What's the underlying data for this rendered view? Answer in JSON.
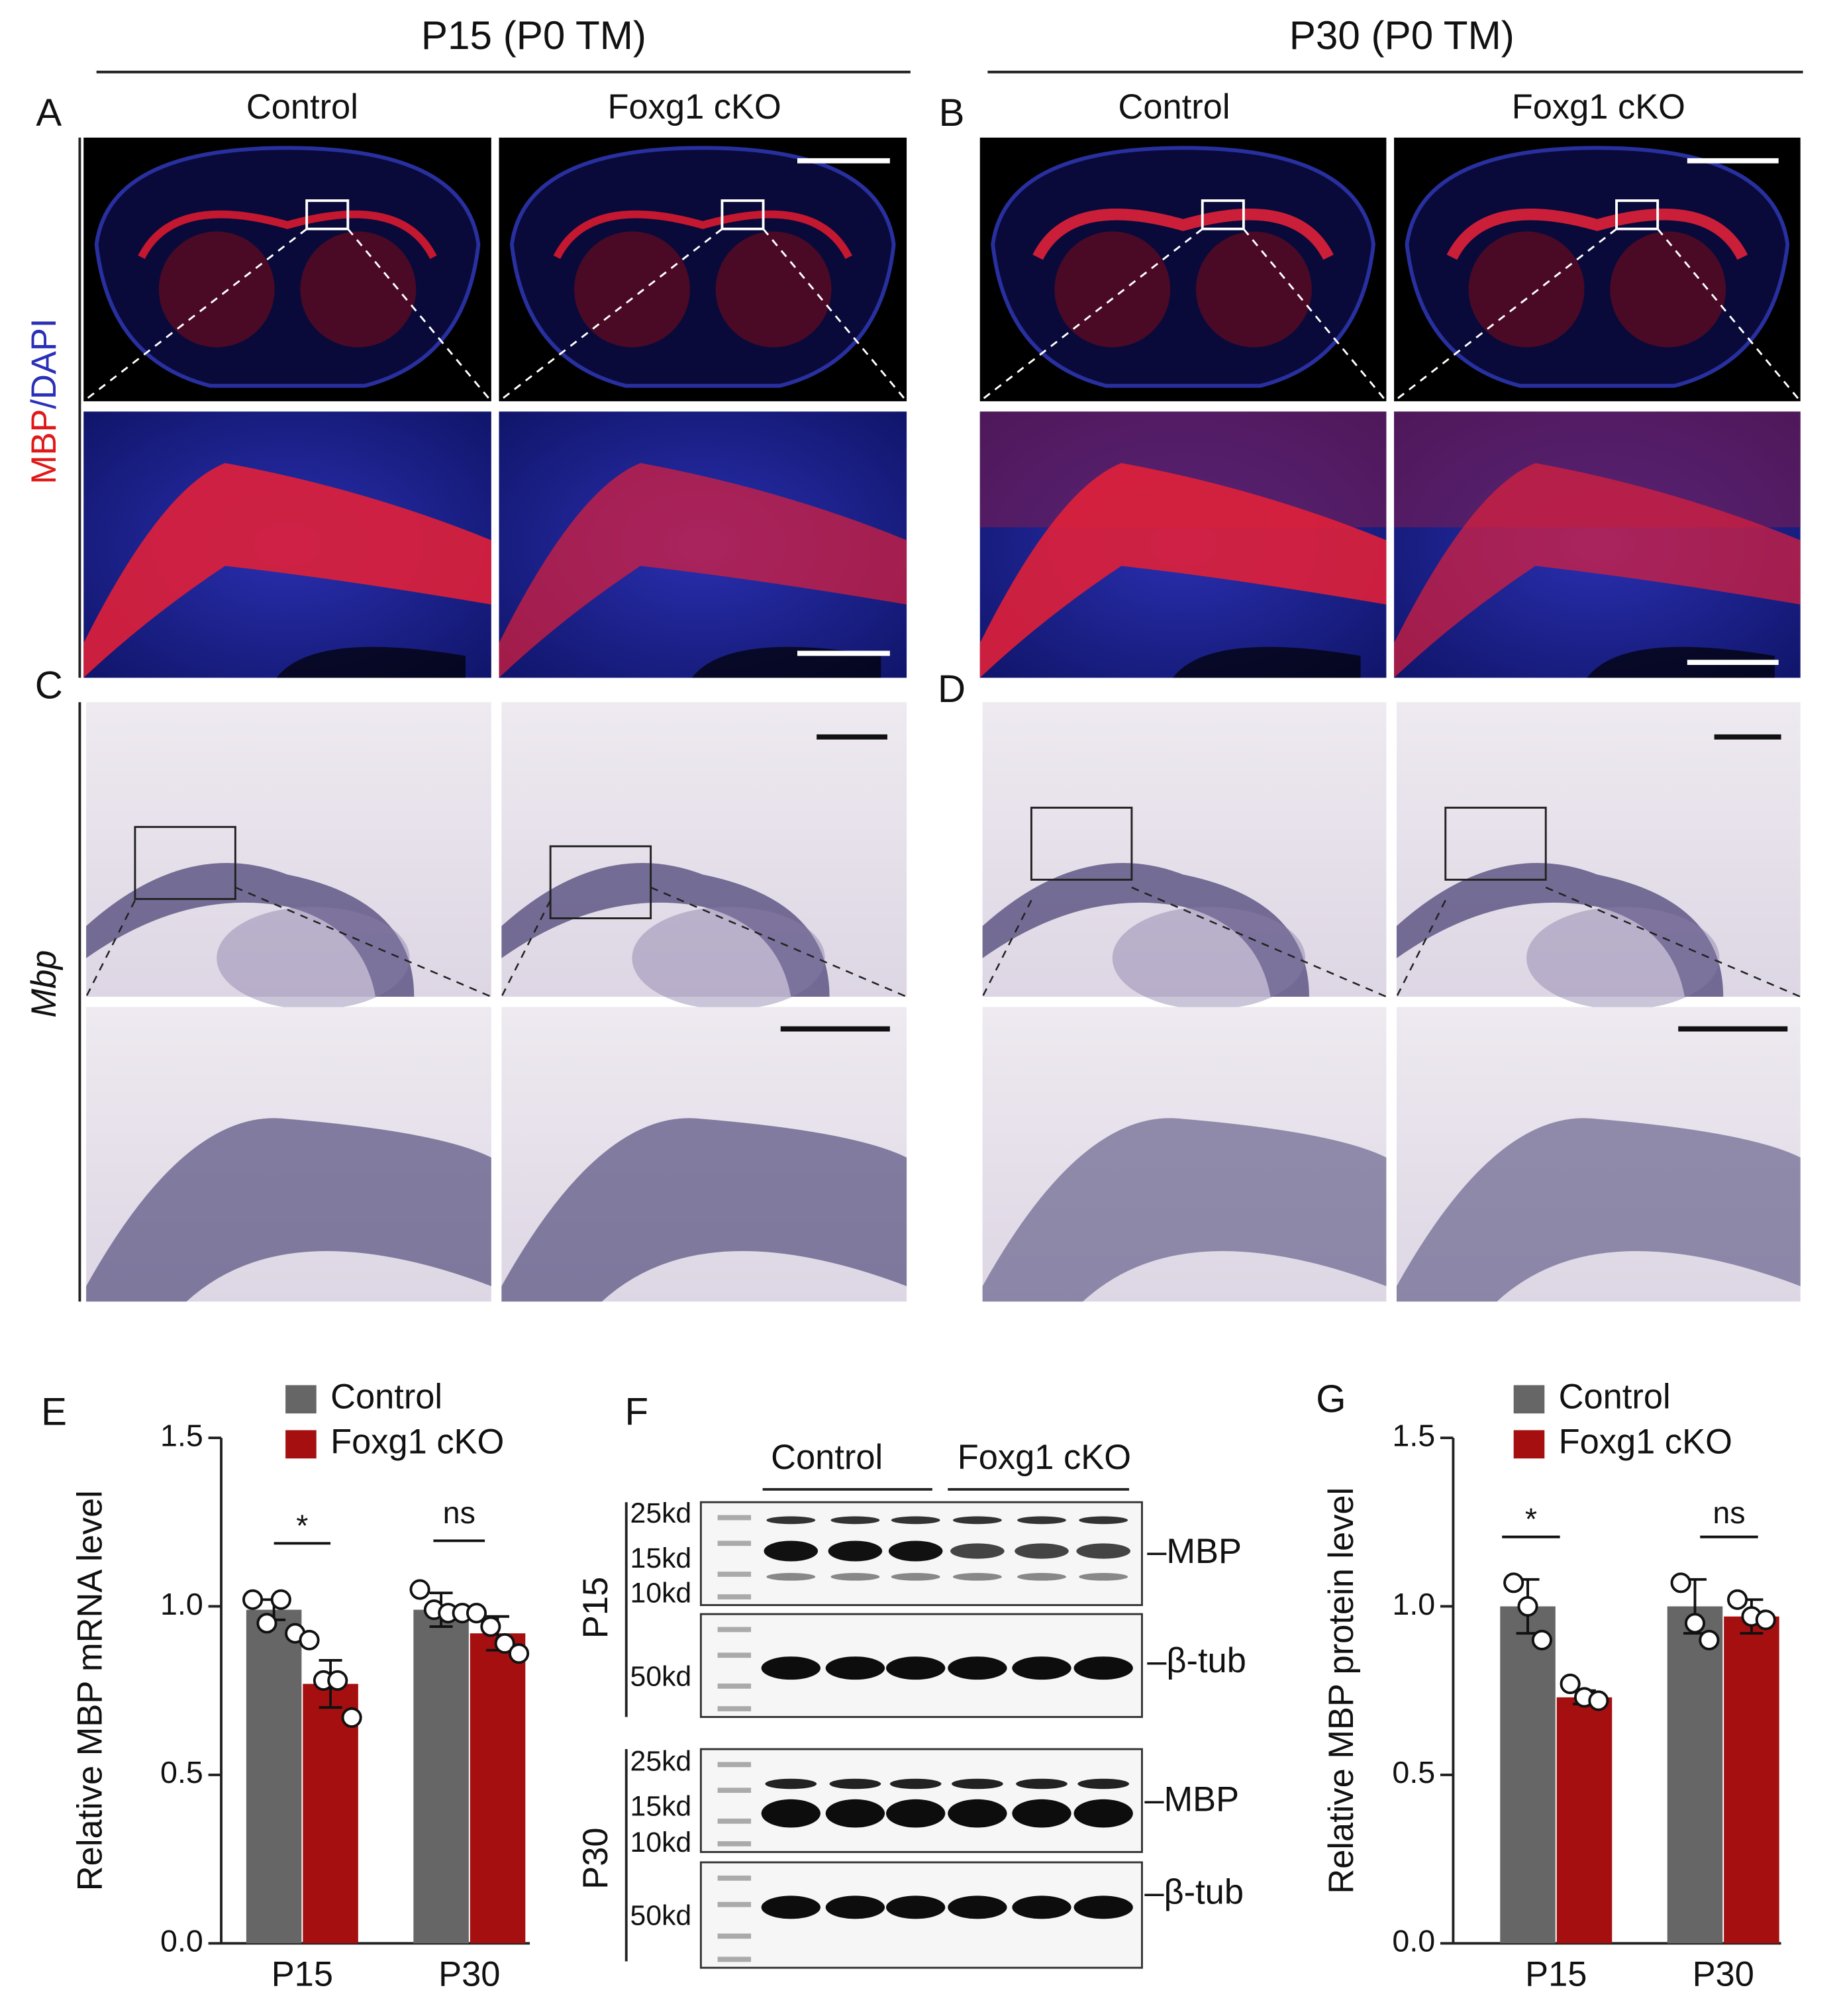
{
  "headers": [
    "P15 (P0 TM)",
    "P30 (P0 TM)"
  ],
  "column_labels": [
    "Control",
    "Foxg1 cKO",
    "Control",
    "Foxg1 cKO"
  ],
  "panel_letters": [
    "A",
    "B",
    "C",
    "D",
    "E",
    "F",
    "G"
  ],
  "side_labels": {
    "mbp": "MBP",
    "dapi": "/DAPI",
    "mbp_gene": "Mbp"
  },
  "blot": {
    "groups": [
      "Control",
      "Foxg1 cKO"
    ],
    "rows": [
      "P15",
      "P30"
    ],
    "markers": [
      "25kd",
      "15kd",
      "10kd",
      "50kd"
    ],
    "bands": [
      "MBP",
      "β-tub"
    ]
  },
  "chart_data": [
    {
      "type": "bar",
      "y_label": "Relative MBP mRNA  level",
      "categories": [
        "P15",
        "P30"
      ],
      "ylim": [
        0,
        1.5
      ],
      "yticks": [
        {
          "value": 0,
          "label": "0.0"
        },
        0.5,
        {
          "value": 1,
          "label": "1.0"
        },
        1.5
      ],
      "series": [
        {
          "name": "Control",
          "color": "#666666",
          "values": [
            0.99,
            0.99
          ],
          "errors": [
            0.03,
            0.05
          ],
          "points": [
            [
              1.02,
              0.95,
              1.02,
              0.92
            ],
            [
              1.05,
              0.99,
              0.98,
              0.98
            ]
          ]
        },
        {
          "name": "Foxg1 cKO",
          "color": "#a50f0f",
          "values": [
            0.77,
            0.92
          ],
          "errors": [
            0.07,
            0.05
          ],
          "points": [
            [
              0.9,
              0.78,
              0.78,
              0.67
            ],
            [
              0.98,
              0.94,
              0.89,
              0.86
            ]
          ]
        }
      ],
      "annotations": [
        "*",
        "ns"
      ]
    },
    {
      "type": "bar",
      "y_label": "Relative MBP protein level",
      "categories": [
        "P15",
        "P30"
      ],
      "ylim": [
        0,
        1.5
      ],
      "yticks": [
        {
          "value": 0,
          "label": "0.0"
        },
        0.5,
        {
          "value": 1,
          "label": "1.0"
        },
        1.5
      ],
      "series": [
        {
          "name": "Control",
          "color": "#666666",
          "values": [
            1.0,
            1.0
          ],
          "errors": [
            0.08,
            0.08
          ],
          "points": [
            [
              1.07,
              1.0,
              0.9
            ],
            [
              1.07,
              0.95,
              0.9
            ]
          ]
        },
        {
          "name": "Foxg1 cKO",
          "color": "#a50f0f",
          "values": [
            0.73,
            0.97
          ],
          "errors": [
            0.02,
            0.05
          ],
          "points": [
            [
              0.77,
              0.73,
              0.72
            ],
            [
              1.02,
              0.97,
              0.96
            ]
          ]
        }
      ],
      "annotations": [
        "*",
        "ns"
      ]
    }
  ]
}
